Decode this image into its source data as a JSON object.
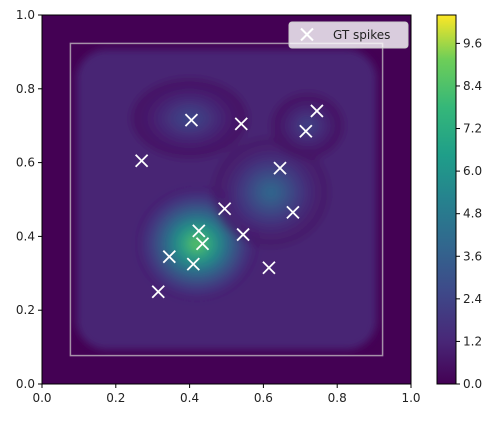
{
  "chart_data": [
    {
      "type": "heatmap",
      "title": "",
      "xlabel": "",
      "ylabel": "",
      "xlim": [
        0.0,
        1.0
      ],
      "ylim": [
        0.0,
        1.0
      ],
      "grid": false,
      "colormap": "viridis",
      "x_ticks": [
        "0.0",
        "0.2",
        "0.4",
        "0.6",
        "0.8",
        "1.0"
      ],
      "y_ticks": [
        "0.0",
        "0.2",
        "0.4",
        "0.6",
        "0.8",
        "1.0"
      ],
      "density_peaks": [
        {
          "x": 0.42,
          "y": 0.38,
          "value": 10.4
        },
        {
          "x": 0.62,
          "y": 0.52,
          "value": 5.0
        },
        {
          "x": 0.4,
          "y": 0.72,
          "value": 3.2
        },
        {
          "x": 0.72,
          "y": 0.7,
          "value": 3.0
        }
      ],
      "roi_rectangle": {
        "x0": 0.077,
        "y0": 0.077,
        "x1": 0.923,
        "y1": 0.923
      },
      "legend": {
        "placement": "top-right",
        "entries": [
          "GT spikes"
        ]
      },
      "series": [
        {
          "name": "GT spikes",
          "marker": "x",
          "color": "#ffffff",
          "points": [
            [
              0.27,
              0.605
            ],
            [
              0.405,
              0.715
            ],
            [
              0.54,
              0.705
            ],
            [
              0.715,
              0.685
            ],
            [
              0.745,
              0.74
            ],
            [
              0.645,
              0.585
            ],
            [
              0.495,
              0.475
            ],
            [
              0.68,
              0.465
            ],
            [
              0.425,
              0.415
            ],
            [
              0.435,
              0.38
            ],
            [
              0.545,
              0.405
            ],
            [
              0.345,
              0.345
            ],
            [
              0.41,
              0.325
            ],
            [
              0.615,
              0.315
            ],
            [
              0.315,
              0.25
            ]
          ]
        }
      ]
    },
    {
      "type": "colorbar",
      "colormap": "viridis",
      "range": [
        0.0,
        10.4
      ],
      "ticks": [
        "0.0",
        "1.2",
        "2.4",
        "3.6",
        "4.8",
        "6.0",
        "7.2",
        "8.4",
        "9.6"
      ],
      "tick_values": [
        0.0,
        1.2,
        2.4,
        3.6,
        4.8,
        6.0,
        7.2,
        8.4,
        9.6
      ]
    }
  ],
  "colors": {
    "background_low": "#440154",
    "marker": "#ffffff",
    "roi_outline": "#b7aab9"
  }
}
